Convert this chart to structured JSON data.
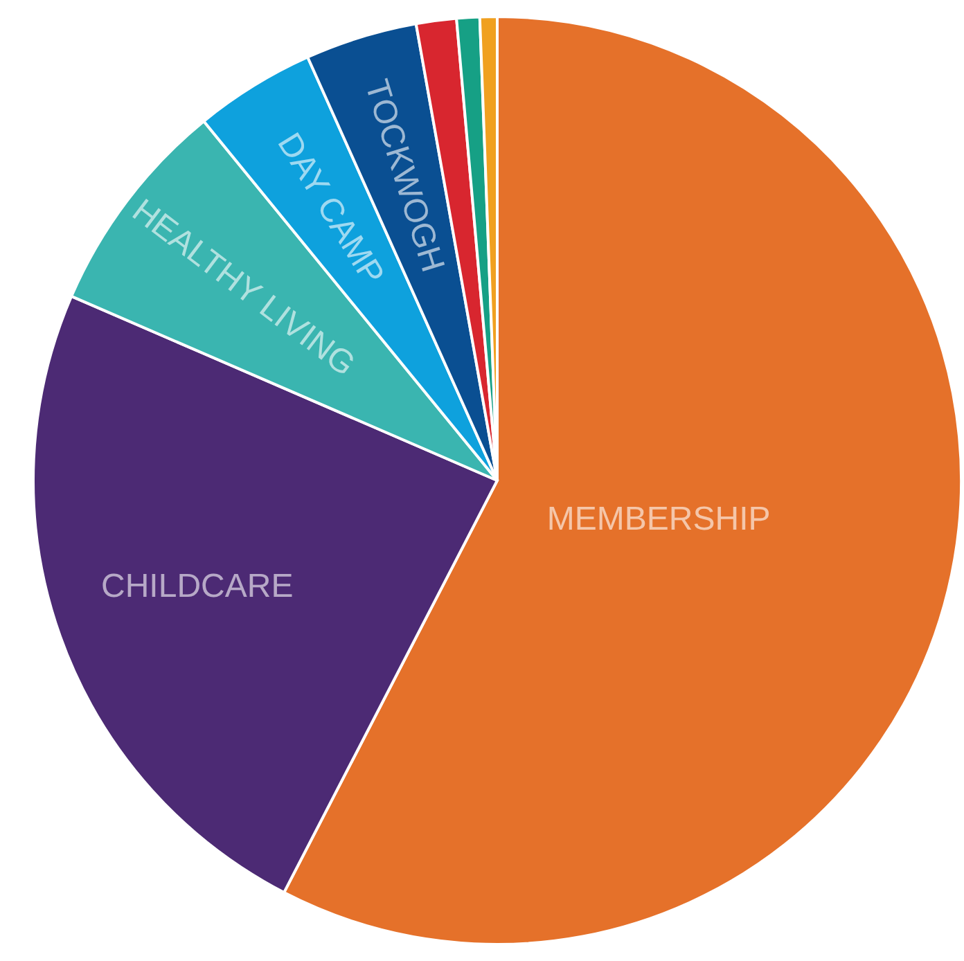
{
  "chart_data": {
    "type": "pie",
    "categories": [
      "MEMBERSHIP",
      "CHILDCARE",
      "HEALTHY LIVING",
      "DAY CAMP",
      "TOCKWOGH",
      null,
      null,
      null
    ],
    "values": [
      57.6,
      23.9,
      7.6,
      4.2,
      3.9,
      1.4,
      0.8,
      0.6
    ],
    "colors": [
      "#e5712a",
      "#4c2a74",
      "#3ab5b0",
      "#0ea1dd",
      "#0a4f92",
      "#d8262f",
      "#16a085",
      "#f0a020"
    ]
  }
}
